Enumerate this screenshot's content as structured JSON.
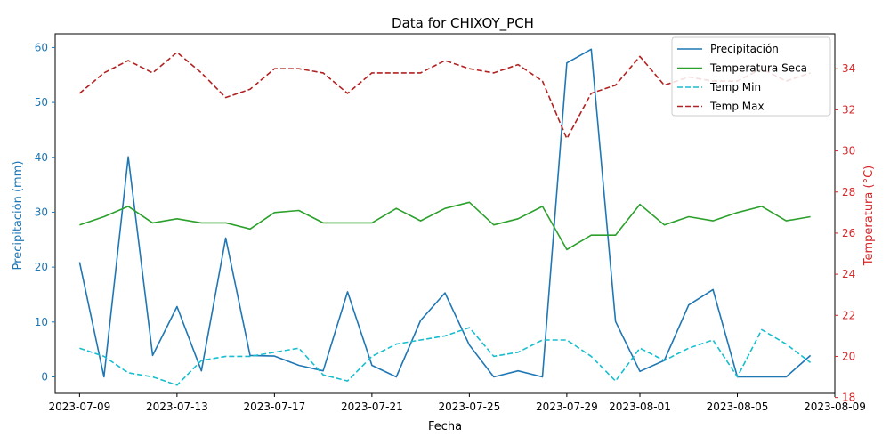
{
  "chart_data": {
    "type": "line",
    "title": "Data for CHIXOY_PCH",
    "xlabel": "Fecha",
    "ylabel_left": "Precipitación (mm)",
    "ylabel_right": "Temperatura (°C)",
    "x_ticks": [
      "2023-07-09",
      "2023-07-13",
      "2023-07-17",
      "2023-07-21",
      "2023-07-25",
      "2023-07-29",
      "2023-08-01",
      "2023-08-05",
      "2023-08-09"
    ],
    "y_ticks_left": [
      0,
      10,
      20,
      30,
      40,
      50,
      60
    ],
    "y_ticks_right": [
      18,
      20,
      22,
      24,
      26,
      28,
      30,
      32,
      34
    ],
    "ylim_left": [
      -3.0,
      62.5
    ],
    "ylim_right": [
      18.2,
      35.7
    ],
    "xlim": [
      "2023-07-08",
      "2023-08-09"
    ],
    "grid": false,
    "legend_position": "top-right",
    "colors": {
      "left_axis": "#1f77b4",
      "right_axis": "#d62728"
    },
    "dates": [
      "2023-07-09",
      "2023-07-10",
      "2023-07-11",
      "2023-07-12",
      "2023-07-13",
      "2023-07-14",
      "2023-07-15",
      "2023-07-16",
      "2023-07-17",
      "2023-07-18",
      "2023-07-19",
      "2023-07-20",
      "2023-07-21",
      "2023-07-22",
      "2023-07-23",
      "2023-07-24",
      "2023-07-25",
      "2023-07-26",
      "2023-07-27",
      "2023-07-28",
      "2023-07-29",
      "2023-07-30",
      "2023-07-31",
      "2023-08-01",
      "2023-08-02",
      "2023-08-03",
      "2023-08-04",
      "2023-08-05",
      "2023-08-06",
      "2023-08-07",
      "2023-08-08"
    ],
    "series": [
      {
        "name": "Precipitación",
        "axis": "left",
        "color": "#1f77b4",
        "dash": "solid",
        "values": [
          20.9,
          0.0,
          40.1,
          3.9,
          12.8,
          1.1,
          25.3,
          3.9,
          3.8,
          2.1,
          1.1,
          15.5,
          2.1,
          0.0,
          10.3,
          15.3,
          5.8,
          0.0,
          1.1,
          0.0,
          57.2,
          59.7,
          10.1,
          1.0,
          3.0,
          13.1,
          15.9,
          0.0,
          0.0,
          0.0,
          3.9
        ]
      },
      {
        "name": "Temperatura Seca",
        "axis": "right",
        "color": "#2ca02c",
        "dash": "solid",
        "values": [
          26.4,
          26.8,
          27.3,
          26.5,
          26.7,
          26.5,
          26.5,
          26.2,
          27.0,
          27.1,
          26.5,
          26.5,
          26.5,
          27.2,
          26.6,
          27.2,
          27.5,
          26.4,
          26.7,
          27.3,
          25.2,
          25.9,
          25.9,
          27.4,
          26.4,
          26.8,
          26.6,
          27.0,
          27.3,
          26.6,
          26.8
        ]
      },
      {
        "name": "Temp Min",
        "axis": "right",
        "color": "#17becf",
        "dash": "dashed",
        "values": [
          20.4,
          20.0,
          19.2,
          19.0,
          18.6,
          19.8,
          20.0,
          20.0,
          20.2,
          20.4,
          19.1,
          18.8,
          20.0,
          20.6,
          20.8,
          21.0,
          21.4,
          20.0,
          20.2,
          20.8,
          20.8,
          20.0,
          18.8,
          20.4,
          19.8,
          20.4,
          20.8,
          19.0,
          21.3,
          20.6,
          19.7
        ]
      },
      {
        "name": "Temp Max",
        "axis": "right",
        "color": "#b22222",
        "dash": "dashed",
        "values": [
          32.8,
          33.8,
          34.4,
          33.8,
          34.8,
          33.8,
          32.6,
          33.0,
          34.0,
          34.0,
          33.8,
          32.8,
          33.8,
          33.8,
          33.8,
          34.4,
          34.0,
          33.8,
          34.2,
          33.4,
          30.6,
          32.8,
          33.2,
          34.6,
          33.2,
          33.6,
          33.4,
          33.4,
          34.0,
          33.4,
          33.8
        ]
      }
    ]
  }
}
